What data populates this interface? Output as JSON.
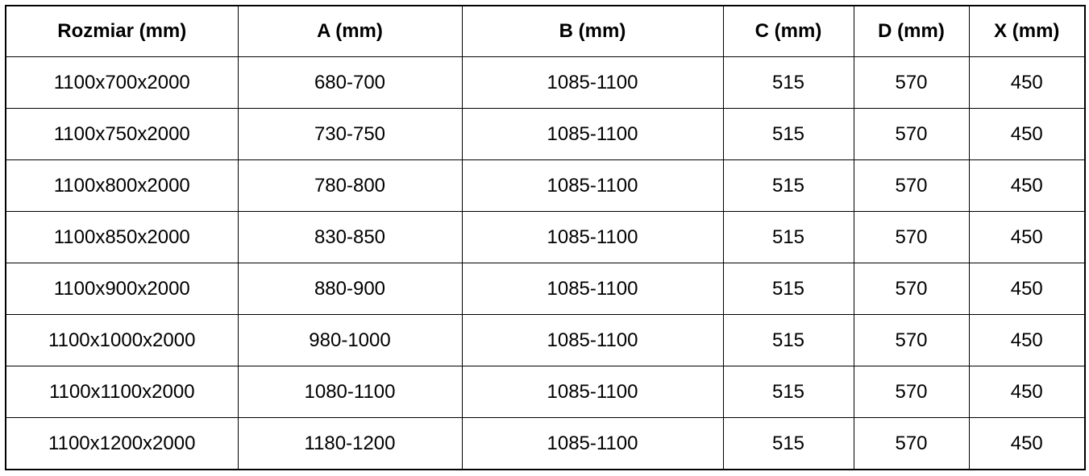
{
  "headers": [
    "Rozmiar (mm)",
    "A (mm)",
    "B (mm)",
    "C (mm)",
    "D (mm)",
    "X (mm)"
  ],
  "rows": [
    [
      "1100x700x2000",
      "680-700",
      "1085-1100",
      "515",
      "570",
      "450"
    ],
    [
      "1100x750x2000",
      "730-750",
      "1085-1100",
      "515",
      "570",
      "450"
    ],
    [
      "1100x800x2000",
      "780-800",
      "1085-1100",
      "515",
      "570",
      "450"
    ],
    [
      "1100x850x2000",
      "830-850",
      "1085-1100",
      "515",
      "570",
      "450"
    ],
    [
      "1100x900x2000",
      "880-900",
      "1085-1100",
      "515",
      "570",
      "450"
    ],
    [
      "1100x1000x2000",
      "980-1000",
      "1085-1100",
      "515",
      "570",
      "450"
    ],
    [
      "1100x1100x2000",
      "1080-1100",
      "1085-1100",
      "515",
      "570",
      "450"
    ],
    [
      "1100x1200x2000",
      "1180-1200",
      "1085-1100",
      "515",
      "570",
      "450"
    ]
  ]
}
